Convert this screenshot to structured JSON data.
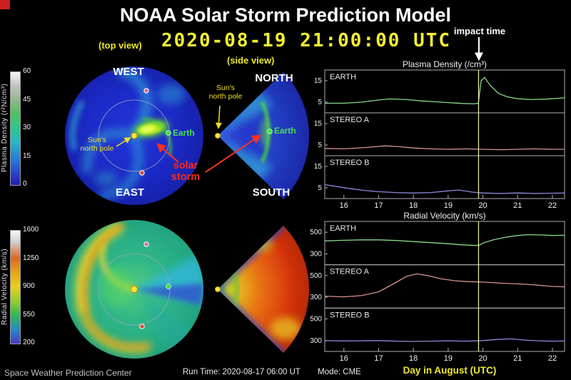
{
  "header": {
    "title": "NOAA Solar Storm Prediction Model",
    "top_view_label": "(top view)",
    "side_view_label": "(side view)",
    "datetime": "2020-08-19  21:00:00 UTC",
    "impact_label": "impact time"
  },
  "top_view": {
    "west": "WEST",
    "east": "EAST",
    "sun_pole_line1": "Sun's",
    "sun_pole_line2": "north pole",
    "earth": "Earth",
    "storm_line1": "solar",
    "storm_line2": "storm"
  },
  "side_view": {
    "north": "NORTH",
    "south": "SOUTH",
    "sun_pole_line1": "Sun's",
    "sun_pole_line2": "north pole",
    "earth": "Earth"
  },
  "colorbars": {
    "density": {
      "label": "Plasma Density (r²N/cm³)",
      "ticks": [
        "60",
        "45",
        "30",
        "15",
        "0"
      ]
    },
    "velocity": {
      "label": "Radial Velocity (km/s)",
      "ticks": [
        "1600",
        "1250",
        "900",
        "550",
        "200"
      ]
    }
  },
  "footer": {
    "credit": "Space Weather Prediction Center",
    "run_time": "Run Time: 2020-08-17 06:00 UT",
    "mode": "Mode: CME",
    "x_axis_label": "Day in August (UTC)"
  },
  "colors": {
    "accent_yellow": "#f0e828",
    "alert_red": "#ff2818",
    "earth_green": "#48e048",
    "impact_line": "#e8e8a2"
  },
  "chart_data": [
    {
      "type": "line",
      "title": "Plasma Density (/cm³)",
      "xlabel": "Day in August (UTC)",
      "xlim": [
        15.45,
        22.35
      ],
      "xticks": [
        16,
        17,
        18,
        19,
        20,
        21,
        22
      ],
      "impact_x": 19.875,
      "subplots": [
        {
          "label": "EARTH",
          "color": "#8ad88a",
          "ylim": [
            0,
            20
          ],
          "yticks": [
            15,
            5
          ],
          "x": [
            15.45,
            16,
            16.5,
            17,
            17.3,
            17.8,
            18.2,
            18.6,
            19,
            19.4,
            19.75,
            19.87,
            19.95,
            20.05,
            20.2,
            20.45,
            20.7,
            21,
            21.4,
            21.8,
            22.35
          ],
          "y": [
            4.5,
            4.5,
            5,
            6,
            6.5,
            6.2,
            5.6,
            5.2,
            4.8,
            4.4,
            4.2,
            4.5,
            15,
            16.5,
            13,
            9,
            7.5,
            6.6,
            6.2,
            6.4,
            7
          ]
        },
        {
          "label": "STEREO A",
          "color": "#d89090",
          "ylim": [
            0,
            20
          ],
          "yticks": [
            15,
            5
          ],
          "x": [
            15.45,
            16,
            16.6,
            17.2,
            17.6,
            18,
            18.5,
            19,
            19.5,
            20,
            20.5,
            21,
            21.5,
            22,
            22.35
          ],
          "y": [
            3.4,
            3.2,
            3.8,
            4.6,
            4.2,
            3.6,
            3.2,
            3.0,
            3.2,
            3.0,
            2.8,
            3.0,
            3.2,
            3.0,
            3.0
          ]
        },
        {
          "label": "STEREO B",
          "color": "#8a8ad8",
          "ylim": [
            0,
            20
          ],
          "yticks": [
            15,
            5
          ],
          "x": [
            15.45,
            15.8,
            16.2,
            16.6,
            17,
            17.5,
            18,
            18.5,
            19,
            19.3,
            19.7,
            20,
            20.5,
            21,
            21.5,
            22,
            22.35
          ],
          "y": [
            6.5,
            5.6,
            4.6,
            3.8,
            3.2,
            2.8,
            2.6,
            2.8,
            3.6,
            4.0,
            3.0,
            2.6,
            2.4,
            2.6,
            2.4,
            2.5,
            2.6
          ]
        }
      ]
    },
    {
      "type": "line",
      "title": "Radial Velocity (km/s)",
      "xlabel": "Day in August (UTC)",
      "xlim": [
        15.45,
        22.35
      ],
      "xticks": [
        16,
        17,
        18,
        19,
        20,
        21,
        22
      ],
      "impact_x": 19.875,
      "subplots": [
        {
          "label": "EARTH",
          "color": "#8ad88a",
          "ylim": [
            200,
            600
          ],
          "yticks": [
            500,
            300
          ],
          "x": [
            15.45,
            16,
            16.5,
            17,
            17.5,
            18,
            18.5,
            19,
            19.4,
            19.8,
            19.9,
            20,
            20.3,
            20.7,
            21,
            21.3,
            21.7,
            22,
            22.35
          ],
          "y": [
            420,
            426,
            430,
            430,
            424,
            414,
            404,
            394,
            384,
            378,
            382,
            400,
            430,
            456,
            470,
            478,
            475,
            470,
            472
          ]
        },
        {
          "label": "STEREO A",
          "color": "#d89090",
          "ylim": [
            200,
            600
          ],
          "yticks": [
            500,
            300
          ],
          "x": [
            15.45,
            16,
            16.5,
            17,
            17.4,
            17.8,
            18.1,
            18.4,
            18.8,
            19.2,
            19.6,
            20,
            20.5,
            21,
            21.5,
            22,
            22.35
          ],
          "y": [
            310,
            304,
            315,
            350,
            420,
            492,
            516,
            500,
            470,
            452,
            444,
            440,
            430,
            424,
            414,
            400,
            396
          ]
        },
        {
          "label": "STEREO B",
          "color": "#8a8ad8",
          "ylim": [
            200,
            600
          ],
          "yticks": [
            500,
            300
          ],
          "x": [
            15.45,
            16,
            16.5,
            17,
            17.5,
            18,
            18.5,
            19,
            19.5,
            20,
            20.4,
            20.8,
            21.2,
            21.6,
            22,
            22.35
          ],
          "y": [
            300,
            296,
            298,
            300,
            294,
            292,
            295,
            298,
            295,
            300,
            310,
            316,
            305,
            298,
            295,
            296
          ]
        }
      ]
    }
  ]
}
